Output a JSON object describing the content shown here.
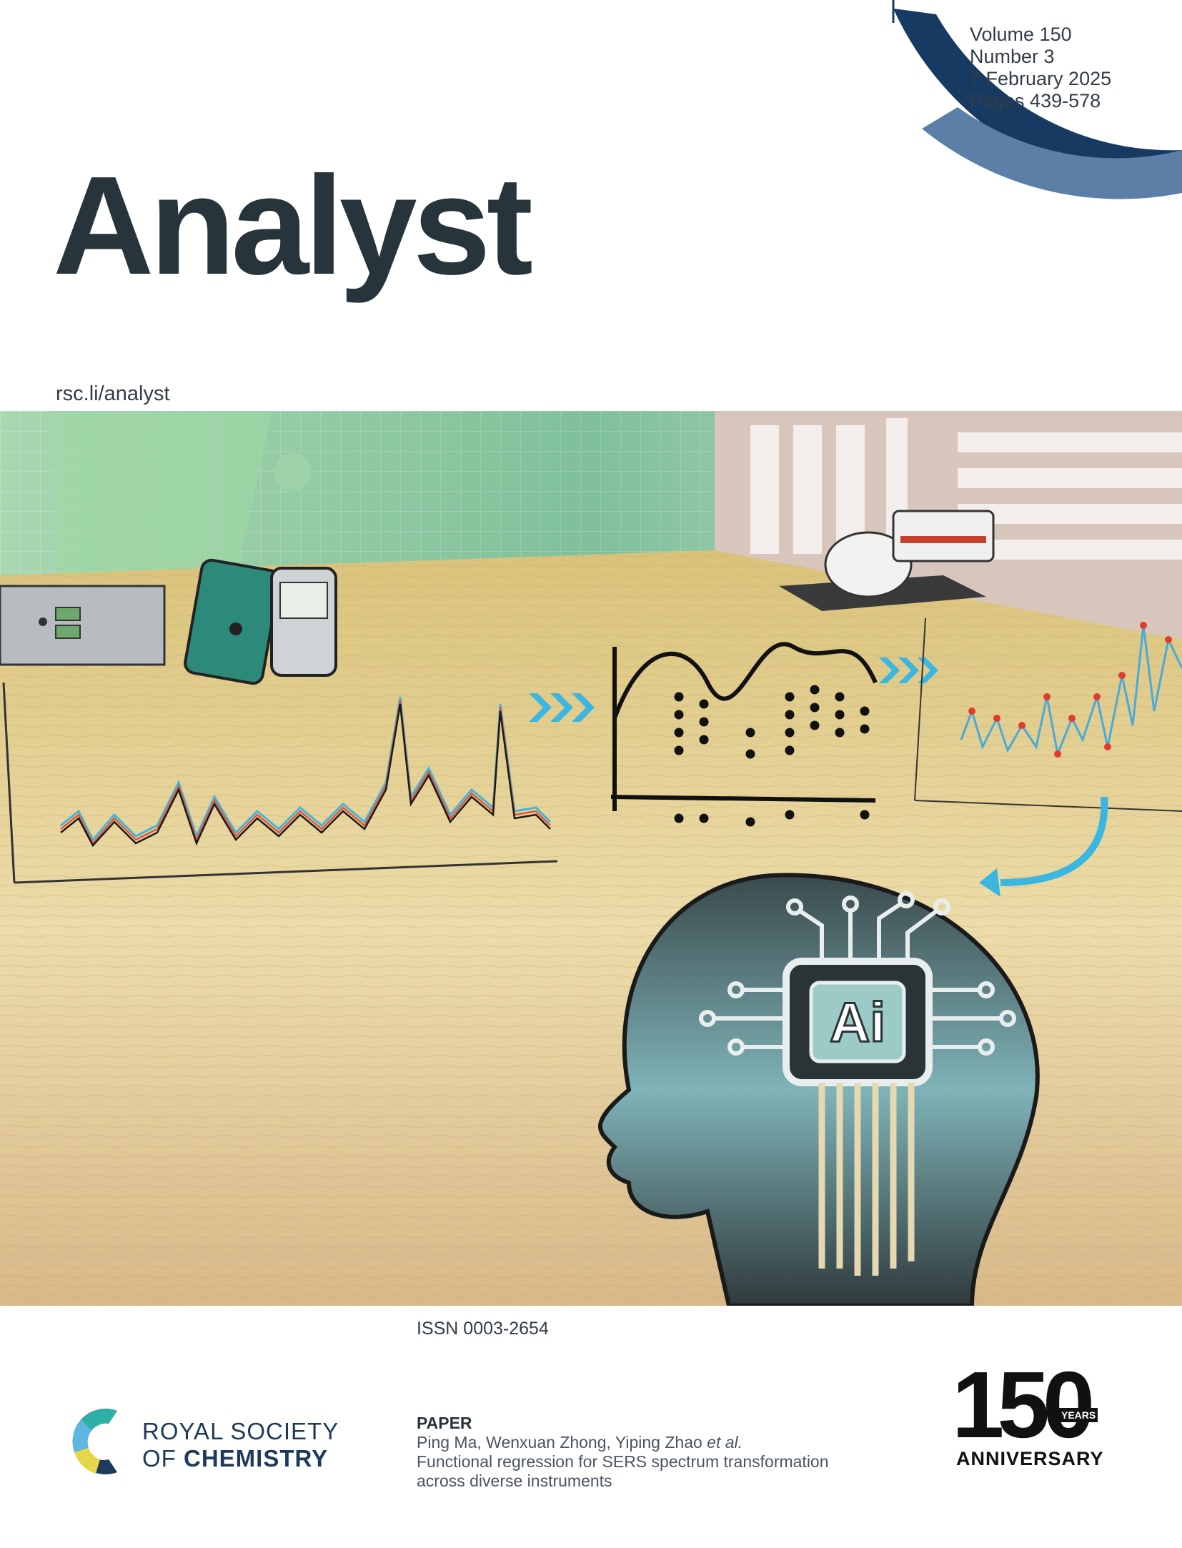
{
  "issue": {
    "volume": "Volume 150",
    "number": "Number 3",
    "date": "7 February 2025",
    "pages": "Pages 439-578"
  },
  "journal": {
    "title": "Analyst",
    "website": "rsc.li/analyst"
  },
  "issn": "ISSN 0003-2654",
  "publisher": {
    "line1": "ROYAL SOCIETY",
    "line2_prefix": "OF ",
    "line2_bold": "CHEMISTRY"
  },
  "paper": {
    "label": "PAPER",
    "authors": "Ping Ma, Wenxuan Zhong, Yiping Zhao ",
    "authors_suffix": "et al.",
    "title_line1": "Functional regression for SERS spectrum transformation",
    "title_line2": "across diverse instruments"
  },
  "anniversary": {
    "number": "150",
    "years": "YEARS",
    "label": "ANNIVERSARY"
  },
  "artwork": {
    "chip_label": "Ai"
  },
  "colors": {
    "brand_dark": "#28343c",
    "arc_dark": "#173a63",
    "arc_light": "#5b7fa6",
    "wood": "#e8d59c",
    "green": "#8fc9a0"
  }
}
